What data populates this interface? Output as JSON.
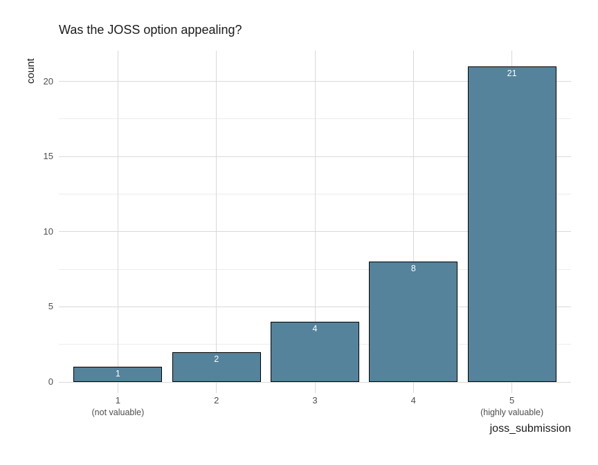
{
  "title": "Was the JOSS option appealing?",
  "chart_data": {
    "type": "bar",
    "title": "Was the JOSS option appealing?",
    "xlabel": "joss_submission",
    "ylabel": "count",
    "categories": [
      "1",
      "2",
      "3",
      "4",
      "5"
    ],
    "category_sublabels": [
      "(not valuable)",
      "",
      "",
      "",
      "(highly valuable)"
    ],
    "values": [
      1,
      2,
      4,
      8,
      21
    ],
    "bar_labels": [
      "1",
      "2",
      "4",
      "8",
      "21"
    ],
    "ylim": [
      0,
      22.05
    ],
    "yticks": [
      0,
      5,
      10,
      15,
      20
    ],
    "yticks_minor": [
      2.5,
      7.5,
      12.5,
      17.5
    ],
    "grid": true,
    "legend": "none",
    "colors": {
      "background": "#ffffff",
      "bar_fill": "#54839b",
      "bar_border": "#000000",
      "grid_major": "#d9d9d9",
      "grid_minor": "#ececec",
      "bar_label_text": "#ffffff",
      "tick_text": "#4d4d4d",
      "title_text": "#1a1a1a"
    }
  }
}
